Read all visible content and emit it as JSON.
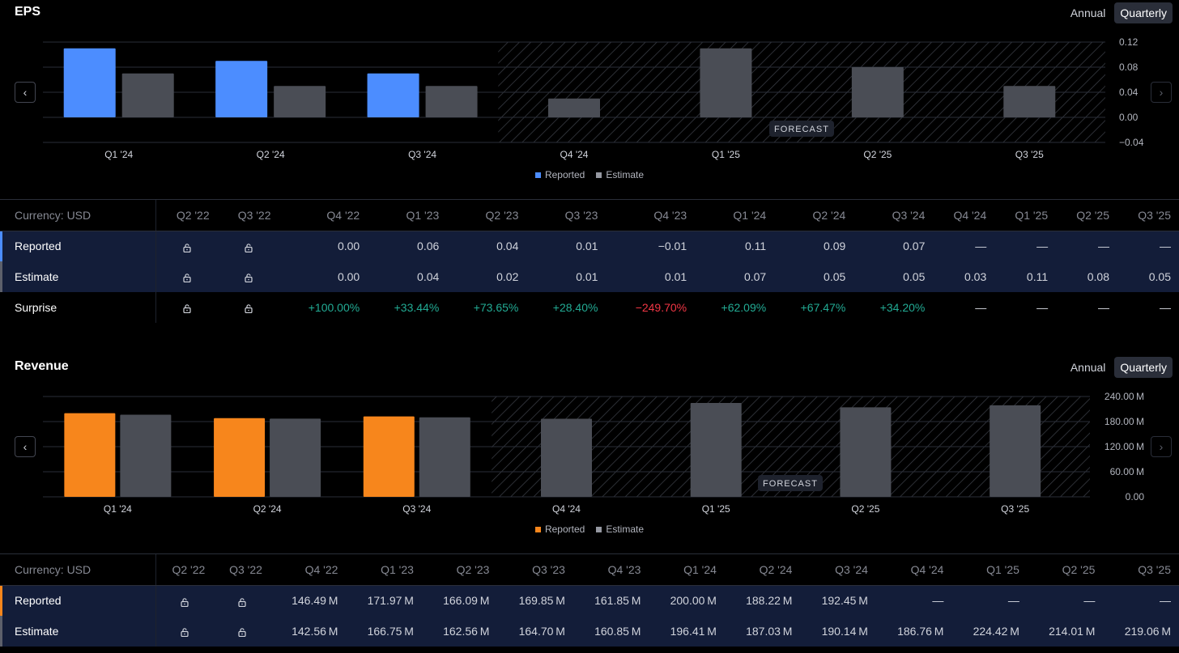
{
  "eps": {
    "title": "EPS",
    "toggle": {
      "annual": "Annual",
      "quarterly": "Quarterly"
    },
    "forecast_label": "FORECAST",
    "legend": {
      "reported": "Reported",
      "estimate": "Estimate"
    },
    "colors": {
      "reported": "#4c8dff",
      "estimate": "#4a4d55"
    }
  },
  "revenue": {
    "title": "Revenue",
    "toggle": {
      "annual": "Annual",
      "quarterly": "Quarterly"
    },
    "forecast_label": "FORECAST",
    "legend": {
      "reported": "Reported",
      "estimate": "Estimate"
    },
    "colors": {
      "reported": "#f7861c",
      "estimate": "#4a4d55"
    }
  },
  "chart_data": [
    {
      "type": "bar",
      "categories": [
        "Q1 '24",
        "Q2 '24",
        "Q3 '24",
        "Q4 '24",
        "Q1 '25",
        "Q2 '25",
        "Q3 '25"
      ],
      "series": [
        {
          "name": "Reported",
          "values": [
            0.11,
            0.09,
            0.07,
            null,
            null,
            null,
            null
          ]
        },
        {
          "name": "Estimate",
          "values": [
            0.07,
            0.05,
            0.05,
            0.03,
            0.11,
            0.08,
            0.05
          ]
        }
      ],
      "ylim": [
        -0.04,
        0.12
      ],
      "yticks": [
        "0.12",
        "0.08",
        "0.04",
        "0.00",
        "−0.04"
      ],
      "tickvalues": [
        0.12,
        0.08,
        0.04,
        0.0,
        -0.04
      ],
      "forecast_from_index": 3
    },
    {
      "type": "bar",
      "categories": [
        "Q1 '24",
        "Q2 '24",
        "Q3 '24",
        "Q4 '24",
        "Q1 '25",
        "Q2 '25",
        "Q3 '25"
      ],
      "series": [
        {
          "name": "Reported",
          "values": [
            200.0,
            188.22,
            192.45,
            null,
            null,
            null,
            null
          ]
        },
        {
          "name": "Estimate",
          "values": [
            196.41,
            187.03,
            190.14,
            186.76,
            224.42,
            214.01,
            219.06
          ]
        }
      ],
      "ylim": [
        0,
        240
      ],
      "yticks": [
        "240.00 M",
        "180.00 M",
        "120.00 M",
        "60.00 M",
        "0.00"
      ],
      "tickvalues": [
        240,
        180,
        120,
        60,
        0
      ],
      "forecast_from_index": 3
    }
  ],
  "eps_table": {
    "currency": "Currency: USD",
    "headers": [
      "Q2 '22",
      "Q3 '22",
      "Q4 '22",
      "Q1 '23",
      "Q2 '23",
      "Q3 '23",
      "Q4 '23",
      "Q1 '24",
      "Q2 '24",
      "Q3 '24",
      "Q4 '24",
      "Q1 '25",
      "Q2 '25",
      "Q3 '25"
    ],
    "rows": [
      {
        "label": "Reported",
        "values": [
          "lock",
          "lock",
          "0.00",
          "0.06",
          "0.04",
          "0.01",
          "−0.01",
          "0.11",
          "0.09",
          "0.07",
          "—",
          "—",
          "—",
          "—"
        ]
      },
      {
        "label": "Estimate",
        "values": [
          "lock",
          "lock",
          "0.00",
          "0.04",
          "0.02",
          "0.01",
          "0.01",
          "0.07",
          "0.05",
          "0.05",
          "0.03",
          "0.11",
          "0.08",
          "0.05"
        ]
      },
      {
        "label": "Surprise",
        "values": [
          "lock",
          "lock",
          "+100.00%",
          "+33.44%",
          "+73.65%",
          "+28.40%",
          "−249.70%",
          "+62.09%",
          "+67.47%",
          "+34.20%",
          "—",
          "—",
          "—",
          "—"
        ]
      }
    ]
  },
  "revenue_table": {
    "currency": "Currency: USD",
    "headers": [
      "Q2 '22",
      "Q3 '22",
      "Q4 '22",
      "Q1 '23",
      "Q2 '23",
      "Q3 '23",
      "Q4 '23",
      "Q1 '24",
      "Q2 '24",
      "Q3 '24",
      "Q4 '24",
      "Q1 '25",
      "Q2 '25",
      "Q3 '25"
    ],
    "rows": [
      {
        "label": "Reported",
        "values": [
          "lock",
          "lock",
          "146.49 M",
          "171.97 M",
          "166.09 M",
          "169.85 M",
          "161.85 M",
          "200.00 M",
          "188.22 M",
          "192.45 M",
          "—",
          "—",
          "—",
          "—"
        ]
      },
      {
        "label": "Estimate",
        "values": [
          "lock",
          "lock",
          "142.56 M",
          "166.75 M",
          "162.56 M",
          "164.70 M",
          "160.85 M",
          "196.41 M",
          "187.03 M",
          "190.14 M",
          "186.76 M",
          "224.42 M",
          "214.01 M",
          "219.06 M"
        ]
      }
    ]
  }
}
